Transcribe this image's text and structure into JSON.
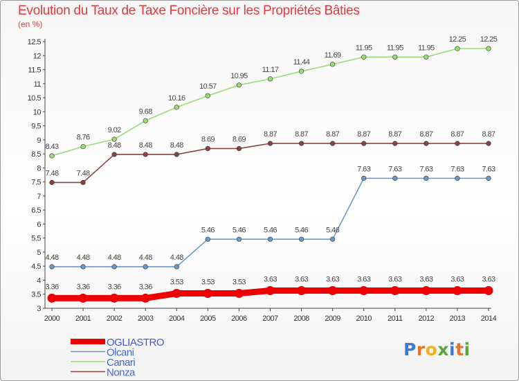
{
  "title": "Evolution du Taux de Taxe Foncière sur les Propriétés Bâties",
  "subtitle": "(en %)",
  "logo": {
    "text": "Proxiti",
    "letters": [
      {
        "ch": "P",
        "color": "#3a7bd5"
      },
      {
        "ch": "r",
        "color": "#e8732a"
      },
      {
        "ch": "o",
        "color": "#f2b01e"
      },
      {
        "ch": "x",
        "color": "#5aa83a"
      },
      {
        "ch": "i",
        "color": "#3a7bd5"
      },
      {
        "ch": "t",
        "color": "#e8732a"
      },
      {
        "ch": "i",
        "color": "#5aa83a"
      }
    ]
  },
  "chart_data": {
    "type": "line",
    "title": "Evolution du Taux de Taxe Foncière sur les Propriétés Bâties",
    "subtitle": "(en %)",
    "xlabel": "",
    "ylabel": "",
    "x": [
      2000,
      2001,
      2002,
      2003,
      2004,
      2005,
      2006,
      2007,
      2008,
      2009,
      2010,
      2011,
      2012,
      2013,
      2014
    ],
    "ylim": [
      3,
      12.5
    ],
    "yticks": [
      3,
      3.5,
      4,
      4.5,
      5,
      5.5,
      6,
      6.5,
      7,
      7.5,
      8,
      8.5,
      9,
      9.5,
      10,
      10.5,
      11,
      11.5,
      12,
      12.5
    ],
    "grid": false,
    "legend_position": "bottom-left",
    "series": [
      {
        "name": "OGLIASTRO",
        "color": "#ee0000",
        "highlight": true,
        "values": [
          3.36,
          3.36,
          3.36,
          3.36,
          3.53,
          3.53,
          3.53,
          3.63,
          3.63,
          3.63,
          3.63,
          3.63,
          3.63,
          3.63,
          3.63
        ],
        "labels": [
          "3.36",
          "3.36",
          "3.36",
          "3.36",
          "3.53",
          "3.53",
          "3.53",
          "3.63",
          "3.63",
          "3.63",
          "3.63",
          "3.63",
          "3.63",
          "3.63",
          "3.63"
        ]
      },
      {
        "name": "Olcani",
        "color": "#6699cc",
        "highlight": false,
        "values": [
          4.48,
          4.48,
          4.48,
          4.48,
          4.48,
          5.46,
          5.46,
          5.46,
          5.46,
          5.46,
          7.63,
          7.63,
          7.63,
          7.63,
          7.63
        ],
        "labels": [
          "4.48",
          "4.48",
          "4.48",
          "4.48",
          "4.48",
          "5.46",
          "5.46",
          "5.46",
          "5.46",
          "5.46",
          "7.63",
          "7.63",
          "7.63",
          "7.63",
          "7.63"
        ]
      },
      {
        "name": "Canari",
        "color": "#99dd77",
        "highlight": false,
        "values": [
          8.43,
          8.76,
          9.02,
          9.68,
          10.16,
          10.57,
          10.95,
          11.17,
          11.44,
          11.69,
          11.95,
          11.95,
          11.95,
          12.25,
          12.25
        ],
        "labels": [
          "8.43",
          "8.76",
          "9.02",
          "9.68",
          "10.16",
          "10.57",
          "10.95",
          "11.17",
          "11.44",
          "11.69",
          "11.95",
          "11.95",
          "11.95",
          "12.25",
          "12.25"
        ]
      },
      {
        "name": "Nonza",
        "color": "#884444",
        "highlight": false,
        "values": [
          7.48,
          7.48,
          8.48,
          8.48,
          8.48,
          8.69,
          8.69,
          8.87,
          8.87,
          8.87,
          8.87,
          8.87,
          8.87,
          8.87,
          8.87
        ],
        "labels": [
          "7.48",
          "7.48",
          "8.48",
          "8.48",
          "8.48",
          "8.69",
          "8.69",
          "8.87",
          "8.87",
          "8.87",
          "8.87",
          "8.87",
          "8.87",
          "8.87",
          "8.87"
        ]
      }
    ]
  }
}
